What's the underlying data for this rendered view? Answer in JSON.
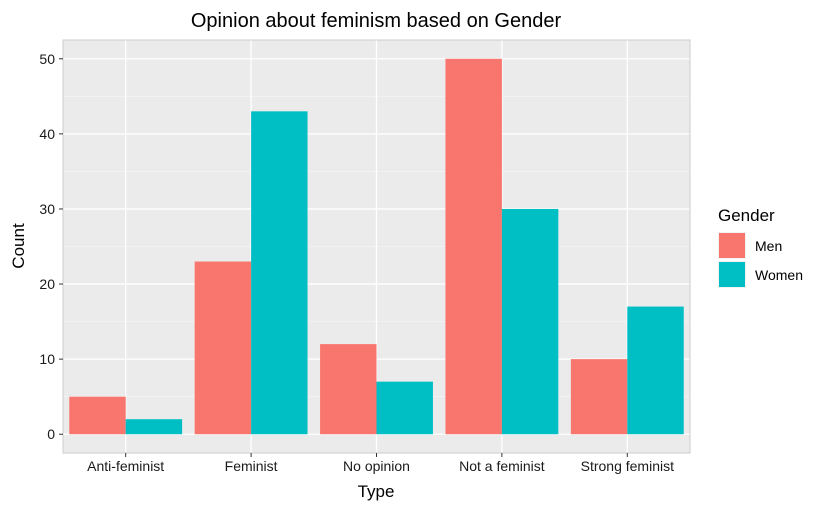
{
  "chart_data": {
    "type": "bar",
    "title": "Opinion about feminism based on Gender",
    "xlabel": "Type",
    "ylabel": "Count",
    "categories": [
      "Anti-feminist",
      "Feminist",
      "No opinion",
      "Not a feminist",
      "Strong feminist"
    ],
    "series": [
      {
        "name": "Men",
        "values": [
          5,
          23,
          12,
          50,
          10
        ]
      },
      {
        "name": "Women",
        "values": [
          2,
          43,
          7,
          30,
          17
        ]
      }
    ],
    "ylim": [
      -2.5,
      52.5
    ],
    "yticks": [
      0,
      10,
      20,
      30,
      40,
      50
    ],
    "grid": true,
    "legend": {
      "title": "Gender",
      "position": "right"
    },
    "colors": {
      "Men": "#F8766D",
      "Women": "#00BFC4",
      "panel": "#EBEBEB",
      "grid": "#FFFFFF"
    }
  }
}
